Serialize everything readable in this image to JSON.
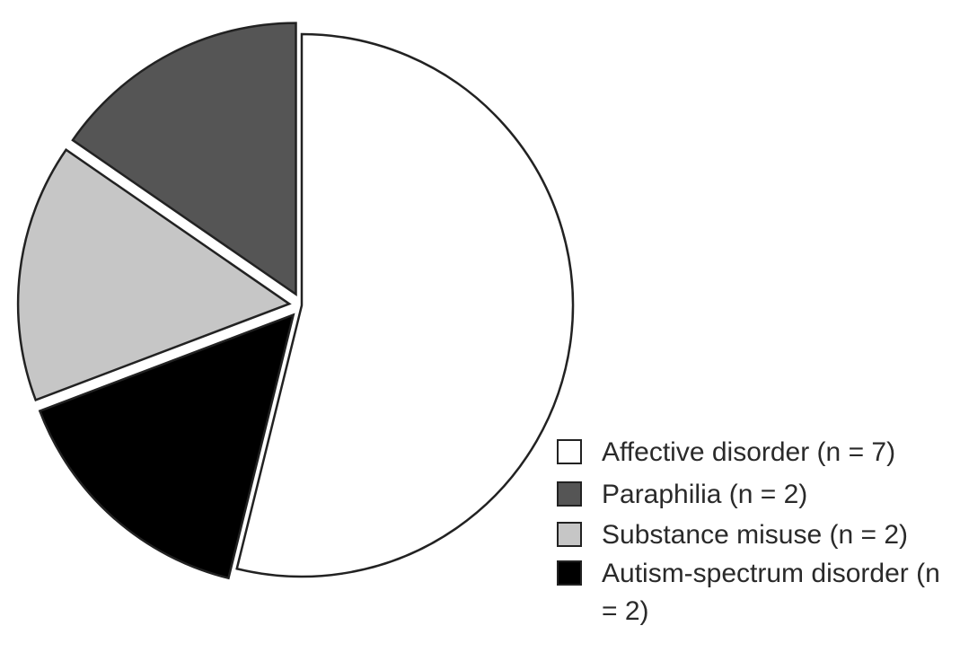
{
  "chart_data": {
    "type": "pie",
    "categories": [
      "Affective disorder (n = 7)",
      "Paraphilia (n = 2)",
      "Substance misuse (n = 2)",
      "Autism-spectrum disorder (n = 2)"
    ],
    "values": [
      7,
      2,
      2,
      2
    ],
    "colors": [
      "#ffffff",
      "#555555",
      "#c6c6c6",
      "#000000"
    ]
  }
}
